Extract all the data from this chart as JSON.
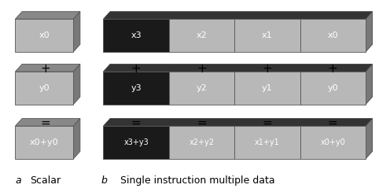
{
  "fig_width": 4.82,
  "fig_height": 2.44,
  "dpi": 100,
  "scalar_boxes": [
    {
      "label": "x0",
      "row": 0,
      "text_color": "white"
    },
    {
      "label": "y0",
      "row": 1,
      "text_color": "white"
    },
    {
      "label": "x0+y0",
      "row": 2,
      "text_color": "white"
    }
  ],
  "simd_rows": [
    {
      "row": 0,
      "cells": [
        {
          "label": "x3",
          "dark": true
        },
        {
          "label": "x2",
          "dark": false
        },
        {
          "label": "x1",
          "dark": false
        },
        {
          "label": "x0",
          "dark": false
        }
      ]
    },
    {
      "row": 1,
      "cells": [
        {
          "label": "y3",
          "dark": true
        },
        {
          "label": "y2",
          "dark": false
        },
        {
          "label": "y1",
          "dark": false
        },
        {
          "label": "y0",
          "dark": false
        }
      ]
    },
    {
      "row": 2,
      "cells": [
        {
          "label": "x3+y3",
          "dark": true
        },
        {
          "label": "x2+y2",
          "dark": false
        },
        {
          "label": "x1+y1",
          "dark": false
        },
        {
          "label": "x0+y0",
          "dark": false
        }
      ]
    }
  ],
  "scalar_box_face": "#b8b8b8",
  "scalar_box_top": "#888888",
  "scalar_box_side": "#787878",
  "dark_cell_color": "#1a1a1a",
  "dark_cell_top": "#333333",
  "dark_cell_side": "#111111",
  "light_cell_color": "#b8b8b8",
  "light_cell_top": "#888888",
  "light_cell_side": "#787878",
  "cell_text_color_dark": "white",
  "cell_text_color_light": "white",
  "simd_ops_plus": [
    "+",
    "+",
    "+",
    "+"
  ],
  "simd_ops_equal": [
    "=",
    "=",
    "=",
    "="
  ],
  "scalar_op_plus": "+",
  "scalar_op_equal": "=",
  "label_a": "a",
  "label_b": "b",
  "caption_scalar": "Scalar",
  "caption_simd": "Single instruction multiple data",
  "label_fontsize": 9,
  "caption_fontsize": 9,
  "op_fontsize": 11,
  "cell_fontsize": 8,
  "cell_fontsize_sm": 7
}
